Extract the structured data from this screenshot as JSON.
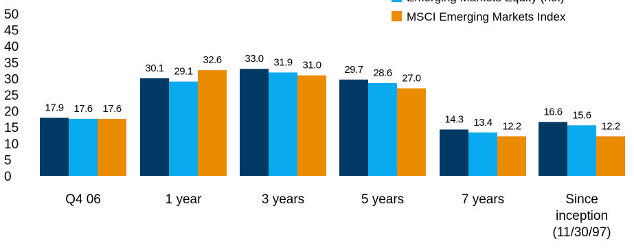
{
  "chart_data": {
    "type": "bar",
    "categories": [
      [
        "Q4 06"
      ],
      [
        "1 year"
      ],
      [
        "3 years"
      ],
      [
        "5 years"
      ],
      [
        "7 years"
      ],
      [
        "Since",
        "inception",
        "(11/30/97)"
      ]
    ],
    "series": [
      {
        "name": "",
        "color": "#003a64",
        "values": [
          17.9,
          30.1,
          33.0,
          29.7,
          14.3,
          16.6
        ],
        "labels": [
          "17.9",
          "30.1",
          "33.0",
          "29.7",
          "14.3",
          "16.6"
        ]
      },
      {
        "name": "Emerging Markets Equity (net)",
        "color": "#09aaee",
        "values": [
          17.6,
          29.1,
          31.9,
          28.6,
          13.4,
          15.6
        ],
        "labels": [
          "17.6",
          "29.1",
          "31.9",
          "28.6",
          "13.4",
          "15.6"
        ]
      },
      {
        "name": "MSCI Emerging Markets Index",
        "color": "#ea8b00",
        "values": [
          17.6,
          32.6,
          31.0,
          27.0,
          12.2,
          12.2
        ],
        "labels": [
          "17.6",
          "32.6",
          "31.0",
          "27.0",
          "12.2",
          "12.2"
        ]
      }
    ],
    "yticks": [
      "0",
      "5",
      "10",
      "15",
      "20",
      "25",
      "30",
      "35",
      "40",
      "45",
      "50"
    ],
    "ylim": [
      0,
      50
    ],
    "grid": false,
    "legend_position": "top-right",
    "title": "",
    "xlabel": "",
    "ylabel": ""
  }
}
